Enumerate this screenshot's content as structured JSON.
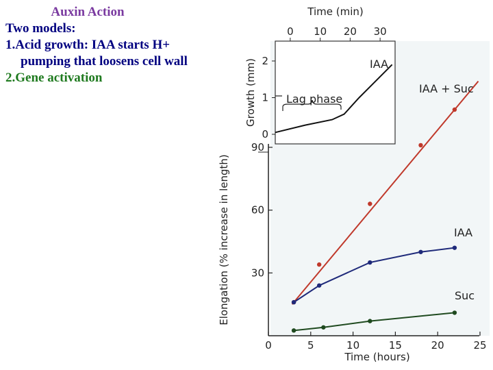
{
  "slide": {
    "title": "Auxin Action",
    "subtitle": "Two models:",
    "item1_line1": "1.Acid growth: IAA starts H+",
    "item1_line2": "pumping that loosens cell wall",
    "item2": "2.Gene activation"
  },
  "colors": {
    "slide_title": "#7a3aa0",
    "slide_text": "#000080",
    "slide_green": "#1f7a1f",
    "iaa_suc": "#c0392b",
    "iaa": "#1f2a7a",
    "suc": "#1f4a1f"
  },
  "chart_data": [
    {
      "type": "line",
      "xlabel": "Time (hours)",
      "ylabel": "Elongation (% increase in length)",
      "xlim": [
        0,
        25
      ],
      "ylim": [
        0,
        90
      ],
      "xticks": [
        0,
        5,
        10,
        15,
        20,
        25
      ],
      "yticks": [
        30,
        60,
        90
      ],
      "grid": false,
      "series": [
        {
          "name": "IAA + Suc",
          "x": [
            3,
            6,
            12,
            18,
            22
          ],
          "y": [
            16,
            34,
            63,
            91,
            108
          ]
        },
        {
          "name": "IAA",
          "x": [
            3,
            6,
            12,
            18,
            22
          ],
          "y": [
            16,
            24,
            35,
            40,
            42
          ]
        },
        {
          "name": "Suc",
          "x": [
            3,
            6.5,
            12,
            22
          ],
          "y": [
            2.5,
            4,
            7,
            11
          ]
        }
      ]
    },
    {
      "type": "line",
      "xlabel": "Time (min)",
      "ylabel": "Growth (mm)",
      "xlim": [
        -5,
        35
      ],
      "ylim": [
        0,
        2.5
      ],
      "xticks": [
        0,
        10,
        20,
        30
      ],
      "yticks": [
        0,
        1,
        2
      ],
      "annotation": "Lag phase",
      "series": [
        {
          "name": "IAA",
          "x": [
            -5,
            5,
            14,
            18,
            23,
            34
          ],
          "y": [
            0.05,
            0.25,
            0.4,
            0.55,
            1.0,
            1.9
          ]
        }
      ]
    }
  ]
}
